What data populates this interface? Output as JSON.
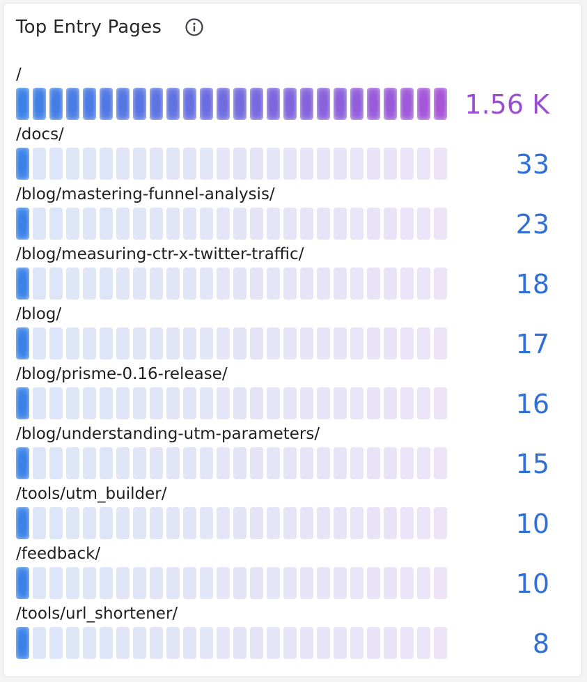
{
  "widget": {
    "title": "Top Entry Pages",
    "info_icon": "info-circle-icon"
  },
  "bar_segments": 26,
  "colors": {
    "gradient_start": "#3b82e6",
    "gradient_end": "#a855d8",
    "empty_start": "#dce6f8",
    "empty_end": "#ece3f7",
    "value_default": "#2f6fd6",
    "value_top": "#9b4fd0"
  },
  "rows": [
    {
      "label": "/",
      "value": "1.56 K",
      "count": 1560
    },
    {
      "label": "/docs/",
      "value": "33",
      "count": 33
    },
    {
      "label": "/blog/mastering-funnel-analysis/",
      "value": "23",
      "count": 23
    },
    {
      "label": "/blog/measuring-ctr-x-twitter-traffic/",
      "value": "18",
      "count": 18
    },
    {
      "label": "/blog/",
      "value": "17",
      "count": 17
    },
    {
      "label": "/blog/prisme-0.16-release/",
      "value": "16",
      "count": 16
    },
    {
      "label": "/blog/understanding-utm-parameters/",
      "value": "15",
      "count": 15
    },
    {
      "label": "/tools/utm_builder/",
      "value": "10",
      "count": 10
    },
    {
      "label": "/feedback/",
      "value": "10",
      "count": 10
    },
    {
      "label": "/tools/url_shortener/",
      "value": "8",
      "count": 8
    }
  ]
}
